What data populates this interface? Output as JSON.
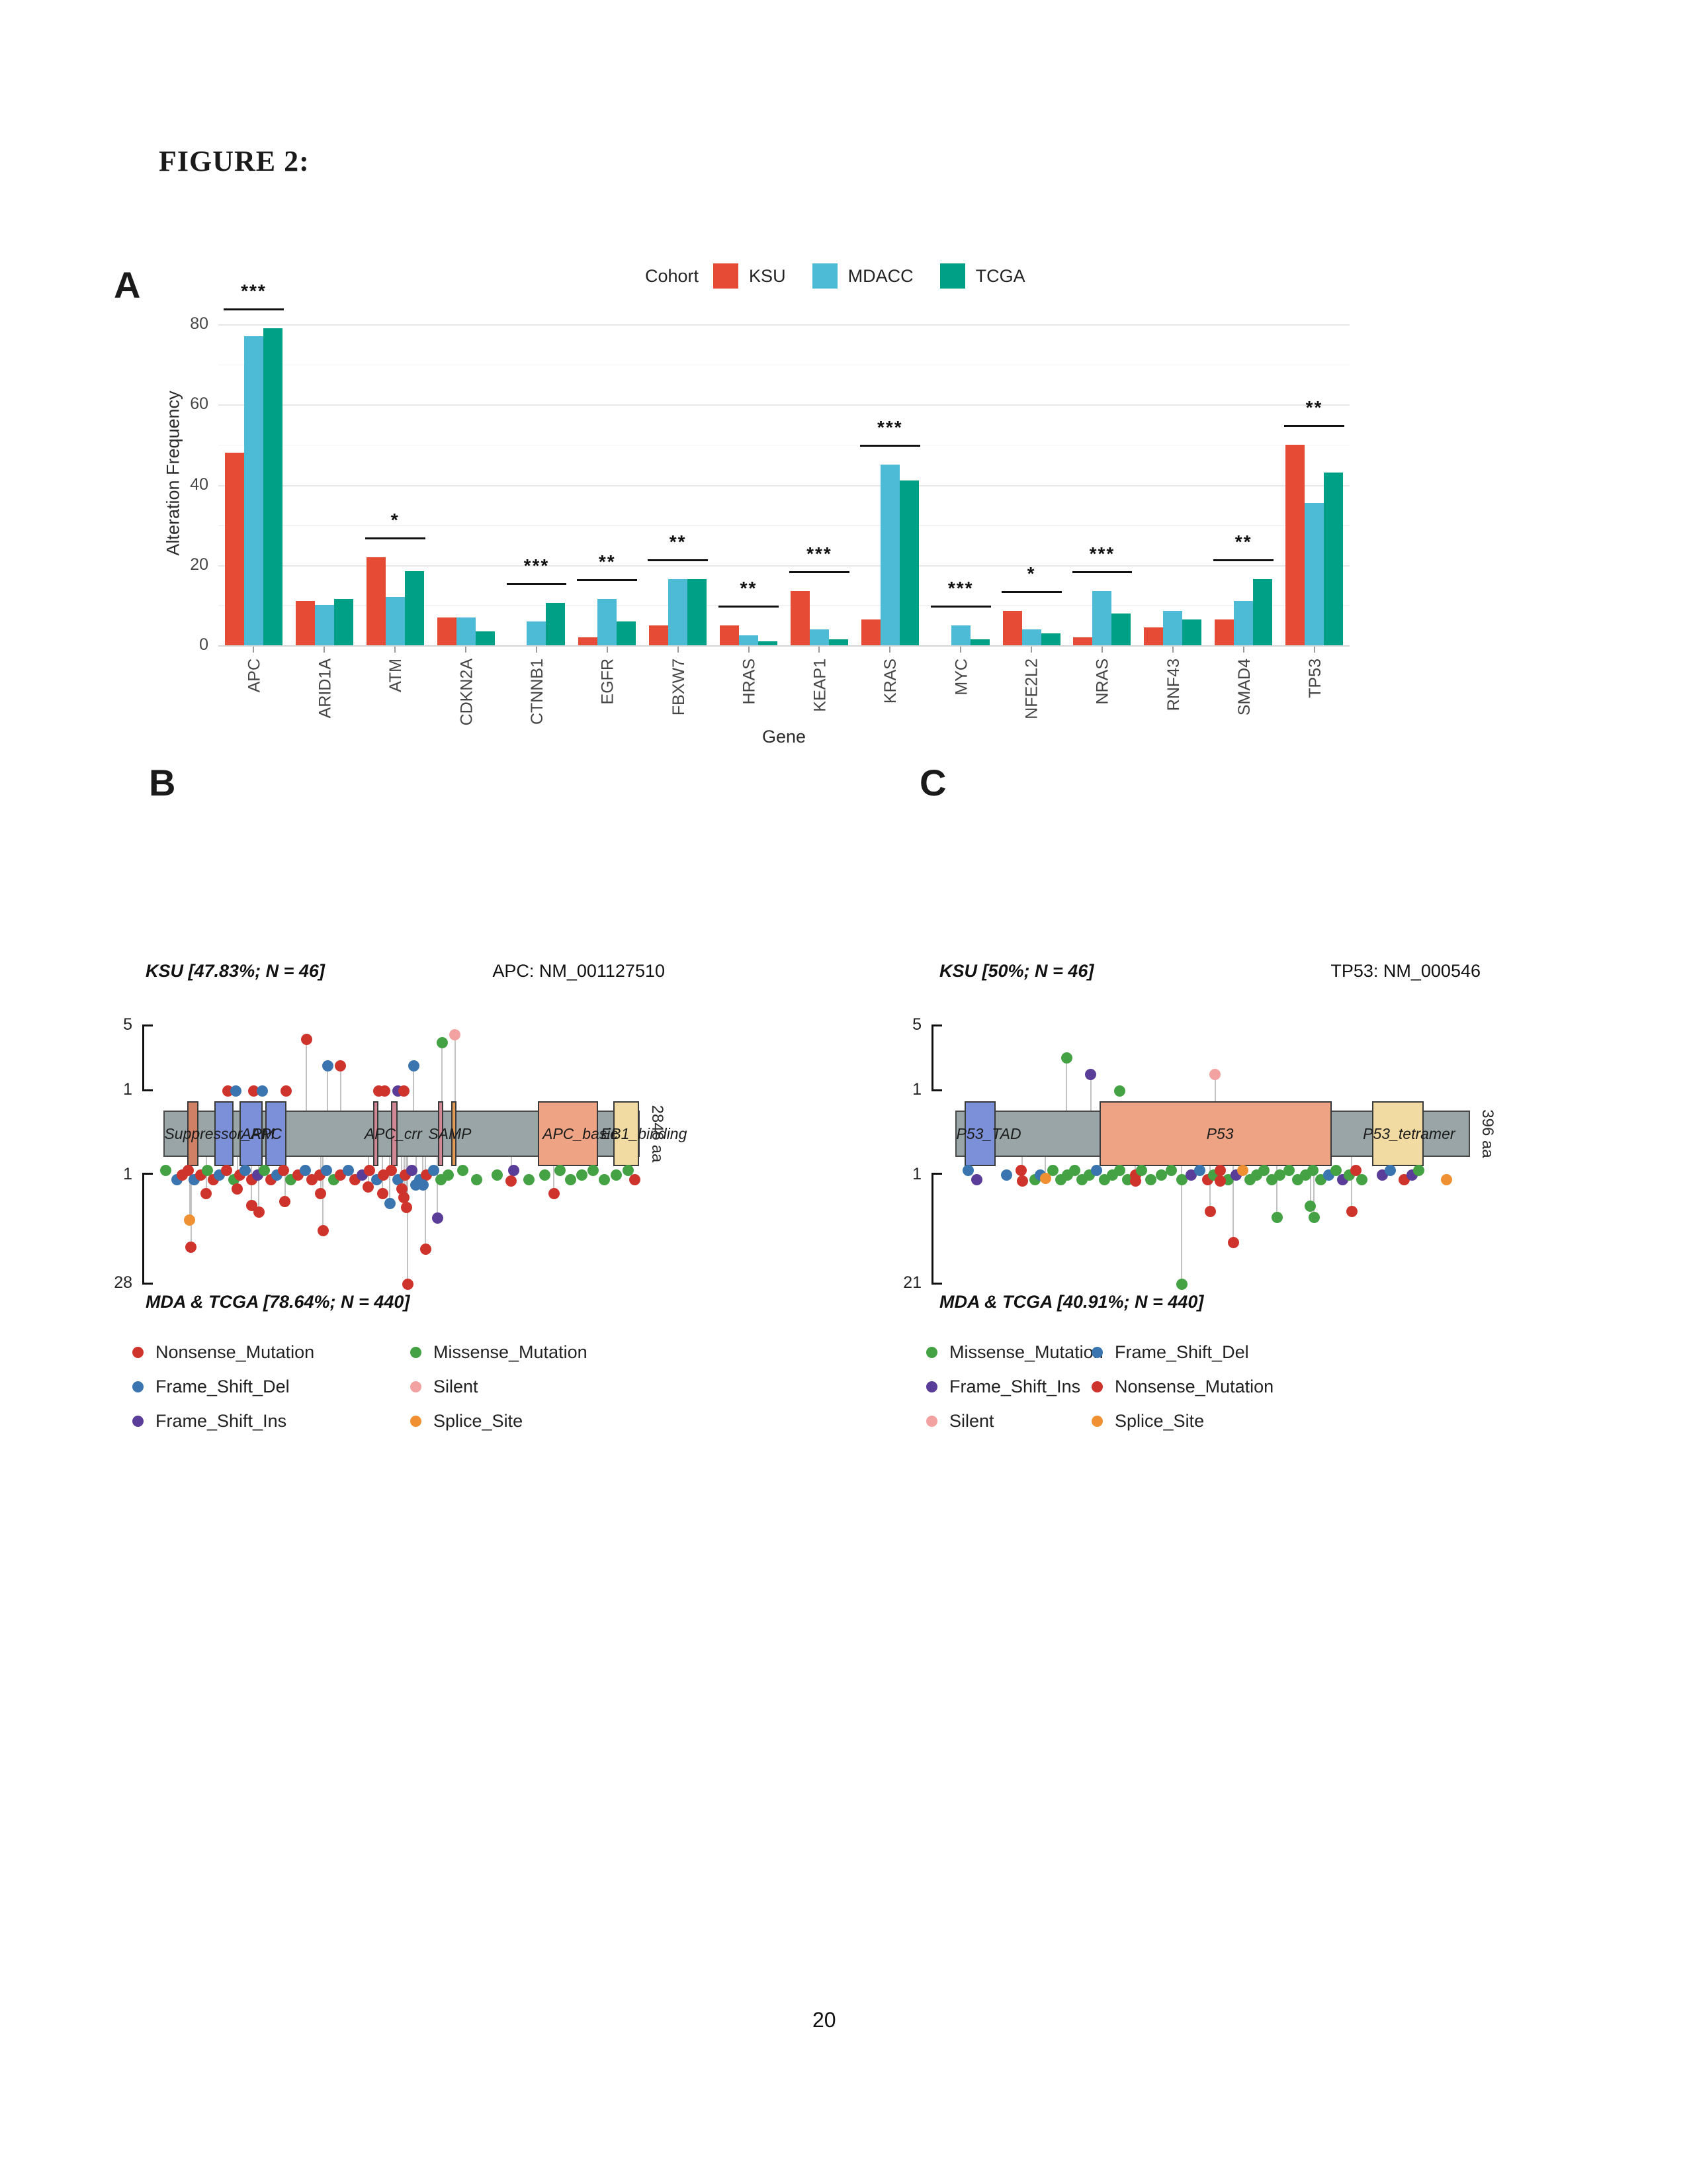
{
  "figure_title": "FIGURE 2:",
  "page_number": "20",
  "mutation_colors": {
    "N": {
      "name": "Nonsense_Mutation",
      "color": "#CE342C"
    },
    "D": {
      "name": "Frame_Shift_Del",
      "color": "#3A75AF"
    },
    "I": {
      "name": "Frame_Shift_Ins",
      "color": "#5A3C99"
    },
    "M": {
      "name": "Missense_Mutation",
      "color": "#44A244"
    },
    "S": {
      "name": "Silent",
      "color": "#F1A2A1"
    },
    "P": {
      "name": "Splice_Site",
      "color": "#EF9132"
    }
  },
  "chart_data": [
    {
      "type": "bar",
      "panel_label": "A",
      "legend_title": "Cohort",
      "xlabel": "Gene",
      "ylabel": "Alteration Frequency",
      "ylim": [
        0,
        80
      ],
      "yticks": [
        0,
        20,
        40,
        60,
        80
      ],
      "grid": "on",
      "legend_position": "top",
      "categories": [
        "APC",
        "ARID1A",
        "ATM",
        "CDKN2A",
        "CTNNB1",
        "EGFR",
        "FBXW7",
        "HRAS",
        "KEAP1",
        "KRAS",
        "MYC",
        "NFE2L2",
        "NRAS",
        "RNF43",
        "SMAD4",
        "TP53"
      ],
      "series": [
        {
          "name": "KSU",
          "color": "#E64B35",
          "values": [
            48,
            11,
            22,
            7,
            0,
            2,
            5,
            5,
            13.5,
            6.5,
            0,
            8.5,
            2,
            4.5,
            6.5,
            50
          ]
        },
        {
          "name": "MDACC",
          "color": "#4DBBD5",
          "values": [
            77,
            10,
            12,
            7,
            6,
            11.5,
            16.5,
            2.5,
            4,
            45,
            5,
            4,
            13.5,
            8.5,
            11,
            35.5
          ]
        },
        {
          "name": "TCGA",
          "color": "#00A087",
          "values": [
            79,
            11.5,
            18.5,
            3.5,
            10.5,
            6,
            16.5,
            1,
            1.5,
            41,
            1.5,
            3,
            8,
            6.5,
            16.5,
            43
          ]
        }
      ],
      "significance": [
        "***",
        "",
        "*",
        "",
        "***",
        "**",
        "**",
        "**",
        "***",
        "***",
        "***",
        "*",
        "***",
        "",
        "**",
        "**"
      ]
    },
    {
      "type": "lollipop",
      "panel_label": "B",
      "title_top": "KSU [47.83%; N = 46]",
      "gene_label": "APC: NM_001127510",
      "title_bottom": "MDA & TCGA [78.64%; N = 440]",
      "aa_label": "2846 aa",
      "top_axis": {
        "max": 5,
        "min": 1
      },
      "bottom_axis": {
        "min": 1,
        "max": 28
      },
      "domains": [
        {
          "x": 0.05,
          "w": 0.023,
          "color": "#D08065"
        },
        {
          "x": 0.107,
          "w": 0.04,
          "color": "#7C8FD9"
        },
        {
          "x": 0.16,
          "w": 0.048,
          "color": "#7C8FD9"
        },
        {
          "x": 0.214,
          "w": 0.044,
          "color": "#7C8FD9"
        },
        {
          "x": 0.44,
          "w": 0.011,
          "color": "#D28795"
        },
        {
          "x": 0.478,
          "w": 0.013,
          "color": "#D28795"
        },
        {
          "x": 0.576,
          "w": 0.011,
          "color": "#D28795"
        },
        {
          "x": 0.604,
          "w": 0.011,
          "color": "#E39A54"
        },
        {
          "x": 0.786,
          "w": 0.126,
          "color": "#EDA384"
        },
        {
          "x": 0.944,
          "w": 0.054,
          "color": "#F1DBA2"
        }
      ],
      "domain_labels": [
        {
          "text": "Suppressor_APC",
          "x": 0.002
        },
        {
          "text": "ARM",
          "x": 0.163
        },
        {
          "text": "APC_crr",
          "x": 0.422
        },
        {
          "text": "SAMP",
          "x": 0.556
        },
        {
          "text": "APC_basic",
          "x": 0.796
        },
        {
          "text": "EB1_binding",
          "x": 0.918
        }
      ],
      "top_dots": [
        [
          0.135,
          1,
          "N"
        ],
        [
          0.152,
          1,
          "D"
        ],
        [
          0.19,
          1,
          "N"
        ],
        [
          0.208,
          1,
          "D"
        ],
        [
          0.258,
          1,
          "N"
        ],
        [
          0.3,
          4.1,
          "N"
        ],
        [
          0.345,
          2.5,
          "D"
        ],
        [
          0.372,
          2.5,
          "N"
        ],
        [
          0.452,
          1,
          "N"
        ],
        [
          0.465,
          1,
          "N"
        ],
        [
          0.492,
          1,
          "I"
        ],
        [
          0.505,
          1,
          "N"
        ],
        [
          0.525,
          2.5,
          "D"
        ],
        [
          0.585,
          3.9,
          "M"
        ],
        [
          0.612,
          4.4,
          "S"
        ]
      ],
      "bottom_dots": [
        [
          0.005,
          1,
          "M"
        ],
        [
          0.028,
          1,
          "D"
        ],
        [
          0.04,
          1,
          "N"
        ],
        [
          0.052,
          1,
          "N"
        ],
        [
          0.065,
          1,
          "D"
        ],
        [
          0.078,
          1,
          "N"
        ],
        [
          0.092,
          1,
          "M"
        ],
        [
          0.105,
          1,
          "N"
        ],
        [
          0.118,
          1,
          "D"
        ],
        [
          0.132,
          1,
          "N"
        ],
        [
          0.148,
          1,
          "M"
        ],
        [
          0.16,
          1,
          "N"
        ],
        [
          0.172,
          1,
          "D"
        ],
        [
          0.185,
          1,
          "N"
        ],
        [
          0.198,
          1,
          "I"
        ],
        [
          0.212,
          1,
          "M"
        ],
        [
          0.225,
          1,
          "N"
        ],
        [
          0.238,
          1,
          "D"
        ],
        [
          0.252,
          1,
          "N"
        ],
        [
          0.268,
          1,
          "M"
        ],
        [
          0.282,
          1,
          "N"
        ],
        [
          0.298,
          1,
          "D"
        ],
        [
          0.312,
          1,
          "N"
        ],
        [
          0.328,
          1,
          "N"
        ],
        [
          0.342,
          1,
          "D"
        ],
        [
          0.358,
          1,
          "M"
        ],
        [
          0.372,
          1,
          "N"
        ],
        [
          0.388,
          1,
          "D"
        ],
        [
          0.402,
          1,
          "N"
        ],
        [
          0.418,
          1,
          "I"
        ],
        [
          0.432,
          1,
          "N"
        ],
        [
          0.448,
          1,
          "D"
        ],
        [
          0.462,
          1,
          "N"
        ],
        [
          0.478,
          1,
          "N"
        ],
        [
          0.492,
          1,
          "D"
        ],
        [
          0.508,
          1,
          "N"
        ],
        [
          0.522,
          1,
          "I"
        ],
        [
          0.538,
          1,
          "D"
        ],
        [
          0.552,
          1,
          "N"
        ],
        [
          0.568,
          1,
          "D"
        ],
        [
          0.582,
          1,
          "M"
        ],
        [
          0.598,
          1,
          "M"
        ],
        [
          0.628,
          1,
          "M"
        ],
        [
          0.658,
          1,
          "M"
        ],
        [
          0.7,
          1,
          "M"
        ],
        [
          0.735,
          1,
          "I"
        ],
        [
          0.768,
          1,
          "M"
        ],
        [
          0.8,
          1,
          "M"
        ],
        [
          0.832,
          1,
          "M"
        ],
        [
          0.855,
          1,
          "M"
        ],
        [
          0.878,
          1,
          "M"
        ],
        [
          0.902,
          1,
          "M"
        ],
        [
          0.925,
          1,
          "M"
        ],
        [
          0.95,
          1,
          "M"
        ],
        [
          0.975,
          1,
          "M"
        ],
        [
          0.99,
          1,
          "N"
        ],
        [
          0.055,
          12.5,
          "P"
        ],
        [
          0.058,
          19,
          "N"
        ],
        [
          0.09,
          6,
          "N"
        ],
        [
          0.155,
          5,
          "N"
        ],
        [
          0.185,
          9,
          "N"
        ],
        [
          0.2,
          10.5,
          "N"
        ],
        [
          0.255,
          8,
          "N"
        ],
        [
          0.33,
          6,
          "N"
        ],
        [
          0.335,
          15,
          "N"
        ],
        [
          0.43,
          4.5,
          "N"
        ],
        [
          0.46,
          6,
          "N"
        ],
        [
          0.475,
          8.5,
          "D"
        ],
        [
          0.5,
          5,
          "N"
        ],
        [
          0.505,
          7,
          "N"
        ],
        [
          0.51,
          9.5,
          "N"
        ],
        [
          0.513,
          28,
          "N"
        ],
        [
          0.53,
          4,
          "D"
        ],
        [
          0.545,
          4,
          "D"
        ],
        [
          0.55,
          19.5,
          "N"
        ],
        [
          0.575,
          12,
          "I"
        ],
        [
          0.73,
          3,
          "N"
        ],
        [
          0.82,
          6,
          "N"
        ]
      ],
      "legend_columns": [
        [
          "N",
          "D",
          "I"
        ],
        [
          "M",
          "S",
          "P"
        ]
      ]
    },
    {
      "type": "lollipop",
      "panel_label": "C",
      "title_top": "KSU [50%; N = 46]",
      "gene_label": "TP53: NM_000546",
      "title_bottom": "MDA & TCGA [40.91%; N = 440]",
      "aa_label": "396 aa",
      "top_axis": {
        "max": 5,
        "min": 1
      },
      "bottom_axis": {
        "min": 1,
        "max": 21
      },
      "domains": [
        {
          "x": 0.018,
          "w": 0.06,
          "color": "#7C8FD9"
        },
        {
          "x": 0.28,
          "w": 0.452,
          "color": "#EDA384"
        },
        {
          "x": 0.81,
          "w": 0.1,
          "color": "#F1DBA2"
        }
      ],
      "domain_labels": [
        {
          "text": "P53_TAD",
          "x": 0.002
        },
        {
          "text": "P53",
          "x": 0.488
        },
        {
          "text": "P53_tetramer",
          "x": 0.792
        }
      ],
      "top_dots": [
        [
          0.216,
          3,
          "M"
        ],
        [
          0.263,
          2,
          "I"
        ],
        [
          0.32,
          1,
          "M"
        ],
        [
          0.505,
          2,
          "S"
        ]
      ],
      "bottom_dots": [
        [
          0.025,
          1,
          "D"
        ],
        [
          0.042,
          1,
          "I"
        ],
        [
          0.1,
          1,
          "D"
        ],
        [
          0.128,
          1,
          "N"
        ],
        [
          0.155,
          1,
          "M"
        ],
        [
          0.165,
          1,
          "D"
        ],
        [
          0.19,
          1,
          "M"
        ],
        [
          0.205,
          1,
          "M"
        ],
        [
          0.218,
          1,
          "M"
        ],
        [
          0.232,
          1,
          "M"
        ],
        [
          0.246,
          1,
          "M"
        ],
        [
          0.26,
          1,
          "M"
        ],
        [
          0.275,
          1,
          "D"
        ],
        [
          0.29,
          1,
          "M"
        ],
        [
          0.305,
          1,
          "M"
        ],
        [
          0.32,
          1,
          "M"
        ],
        [
          0.335,
          1,
          "M"
        ],
        [
          0.35,
          1,
          "N"
        ],
        [
          0.362,
          1,
          "M"
        ],
        [
          0.38,
          1,
          "M"
        ],
        [
          0.4,
          1,
          "M"
        ],
        [
          0.42,
          1,
          "M"
        ],
        [
          0.44,
          1,
          "M"
        ],
        [
          0.458,
          1,
          "I"
        ],
        [
          0.475,
          1,
          "D"
        ],
        [
          0.49,
          1,
          "N"
        ],
        [
          0.502,
          1,
          "M"
        ],
        [
          0.515,
          1,
          "N"
        ],
        [
          0.53,
          1,
          "M"
        ],
        [
          0.545,
          1,
          "I"
        ],
        [
          0.558,
          1,
          "P"
        ],
        [
          0.572,
          1,
          "M"
        ],
        [
          0.585,
          1,
          "M"
        ],
        [
          0.6,
          1,
          "M"
        ],
        [
          0.615,
          1,
          "M"
        ],
        [
          0.63,
          1,
          "M"
        ],
        [
          0.648,
          1,
          "M"
        ],
        [
          0.665,
          1,
          "M"
        ],
        [
          0.68,
          1,
          "M"
        ],
        [
          0.695,
          1,
          "M"
        ],
        [
          0.71,
          1,
          "M"
        ],
        [
          0.725,
          1,
          "D"
        ],
        [
          0.74,
          1,
          "M"
        ],
        [
          0.752,
          1,
          "I"
        ],
        [
          0.765,
          1,
          "M"
        ],
        [
          0.778,
          1,
          "N"
        ],
        [
          0.79,
          1,
          "M"
        ],
        [
          0.83,
          1,
          "I"
        ],
        [
          0.845,
          1,
          "D"
        ],
        [
          0.872,
          1,
          "N"
        ],
        [
          0.888,
          1,
          "I"
        ],
        [
          0.9,
          1,
          "M"
        ],
        [
          0.955,
          1,
          "P"
        ],
        [
          0.44,
          21,
          "M"
        ],
        [
          0.495,
          8,
          "N"
        ],
        [
          0.54,
          13.5,
          "N"
        ],
        [
          0.625,
          9,
          "M"
        ],
        [
          0.69,
          7,
          "M"
        ],
        [
          0.697,
          9,
          "M"
        ],
        [
          0.77,
          8,
          "N"
        ],
        [
          0.13,
          2.5,
          "N"
        ],
        [
          0.35,
          2.5,
          "N"
        ],
        [
          0.515,
          2.5,
          "N"
        ],
        [
          0.175,
          2,
          "P"
        ]
      ],
      "legend_columns": [
        [
          "M",
          "I",
          "S"
        ],
        [
          "D",
          "N",
          "P"
        ]
      ]
    }
  ]
}
